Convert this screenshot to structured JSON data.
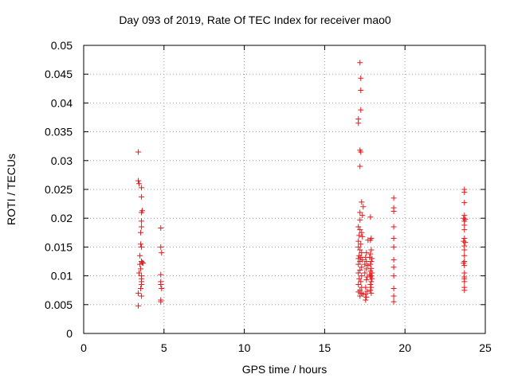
{
  "chart_data": {
    "type": "scatter",
    "title": "Day 093 of 2019, Rate Of TEC Index for receiver mao0",
    "xlabel": "GPS time / hours",
    "ylabel": "ROTI / TECUs",
    "xlim": [
      0,
      25
    ],
    "ylim": [
      0,
      0.05
    ],
    "xticks": [
      0,
      5,
      10,
      15,
      20,
      25
    ],
    "xtick_labels": [
      "0",
      "5",
      "10",
      "15",
      "20",
      "25"
    ],
    "yticks": [
      0,
      0.005,
      0.01,
      0.015,
      0.02,
      0.025,
      0.03,
      0.035,
      0.04,
      0.045,
      0.05
    ],
    "ytick_labels": [
      "0",
      "0.005",
      "0.01",
      "0.015",
      "0.02",
      "0.025",
      "0.03",
      "0.035",
      "0.04",
      "0.045",
      "0.05"
    ],
    "grid": true,
    "marker": "+",
    "color": "#e41a1c",
    "series": [
      {
        "name": "ROTI",
        "points": [
          [
            3.4,
            0.0315
          ],
          [
            3.4,
            0.0265
          ],
          [
            3.45,
            0.026
          ],
          [
            3.6,
            0.0253
          ],
          [
            3.6,
            0.0237
          ],
          [
            3.65,
            0.0213
          ],
          [
            3.6,
            0.021
          ],
          [
            3.6,
            0.0195
          ],
          [
            3.6,
            0.0185
          ],
          [
            3.55,
            0.0175
          ],
          [
            3.55,
            0.0155
          ],
          [
            3.6,
            0.015
          ],
          [
            3.5,
            0.0135
          ],
          [
            3.6,
            0.0125
          ],
          [
            3.65,
            0.0123
          ],
          [
            3.7,
            0.0122
          ],
          [
            3.5,
            0.012
          ],
          [
            3.55,
            0.0112
          ],
          [
            3.45,
            0.0105
          ],
          [
            3.6,
            0.01
          ],
          [
            3.6,
            0.0095
          ],
          [
            3.6,
            0.009
          ],
          [
            3.6,
            0.0085
          ],
          [
            3.55,
            0.0078
          ],
          [
            3.4,
            0.007
          ],
          [
            3.6,
            0.0065
          ],
          [
            3.4,
            0.0048
          ],
          [
            4.8,
            0.0183
          ],
          [
            4.8,
            0.015
          ],
          [
            4.85,
            0.014
          ],
          [
            4.8,
            0.0102
          ],
          [
            4.8,
            0.009
          ],
          [
            4.8,
            0.0085
          ],
          [
            4.85,
            0.0078
          ],
          [
            4.8,
            0.0058
          ],
          [
            4.8,
            0.0055
          ],
          [
            17.2,
            0.047
          ],
          [
            17.25,
            0.0443
          ],
          [
            17.25,
            0.0422
          ],
          [
            17.25,
            0.0388
          ],
          [
            17.1,
            0.0372
          ],
          [
            17.1,
            0.0365
          ],
          [
            17.2,
            0.0318
          ],
          [
            17.25,
            0.0315
          ],
          [
            17.2,
            0.029
          ],
          [
            17.3,
            0.0228
          ],
          [
            17.4,
            0.022
          ],
          [
            17.2,
            0.021
          ],
          [
            17.35,
            0.0205
          ],
          [
            17.2,
            0.0197
          ],
          [
            17.1,
            0.0185
          ],
          [
            17.2,
            0.018
          ],
          [
            17.3,
            0.0175
          ],
          [
            17.15,
            0.017
          ],
          [
            17.35,
            0.0168
          ],
          [
            17.1,
            0.016
          ],
          [
            17.25,
            0.0155
          ],
          [
            17.1,
            0.015
          ],
          [
            17.2,
            0.0145
          ],
          [
            17.3,
            0.014
          ],
          [
            17.15,
            0.0135
          ],
          [
            17.25,
            0.0132
          ],
          [
            17.1,
            0.013
          ],
          [
            17.35,
            0.0128
          ],
          [
            17.2,
            0.0125
          ],
          [
            17.1,
            0.012
          ],
          [
            17.3,
            0.0115
          ],
          [
            17.2,
            0.011
          ],
          [
            17.1,
            0.0105
          ],
          [
            17.3,
            0.01
          ],
          [
            17.15,
            0.0095
          ],
          [
            17.25,
            0.009
          ],
          [
            17.1,
            0.0085
          ],
          [
            17.3,
            0.008
          ],
          [
            17.2,
            0.0075
          ],
          [
            17.1,
            0.0072
          ],
          [
            17.3,
            0.007
          ],
          [
            17.4,
            0.0068
          ],
          [
            17.2,
            0.0065
          ],
          [
            17.7,
            0.0162
          ],
          [
            17.6,
            0.014
          ],
          [
            17.55,
            0.0132
          ],
          [
            17.6,
            0.0125
          ],
          [
            17.5,
            0.012
          ],
          [
            17.7,
            0.0118
          ],
          [
            17.6,
            0.0112
          ],
          [
            17.5,
            0.0105
          ],
          [
            17.65,
            0.0098
          ],
          [
            17.6,
            0.0093
          ],
          [
            17.55,
            0.008
          ],
          [
            17.65,
            0.0073
          ],
          [
            17.55,
            0.0068
          ],
          [
            17.6,
            0.0063
          ],
          [
            17.55,
            0.0058
          ],
          [
            17.85,
            0.0202
          ],
          [
            17.9,
            0.0165
          ],
          [
            17.85,
            0.0162
          ],
          [
            17.9,
            0.0145
          ],
          [
            17.85,
            0.0138
          ],
          [
            17.8,
            0.0132
          ],
          [
            17.95,
            0.013
          ],
          [
            17.9,
            0.0125
          ],
          [
            17.85,
            0.012
          ],
          [
            17.9,
            0.0113
          ],
          [
            17.85,
            0.0108
          ],
          [
            17.95,
            0.0105
          ],
          [
            17.8,
            0.0102
          ],
          [
            17.9,
            0.01
          ],
          [
            17.85,
            0.0098
          ],
          [
            17.95,
            0.0095
          ],
          [
            17.9,
            0.009
          ],
          [
            17.85,
            0.0085
          ],
          [
            17.9,
            0.008
          ],
          [
            17.85,
            0.0075
          ],
          [
            17.9,
            0.007
          ],
          [
            19.3,
            0.0235
          ],
          [
            19.3,
            0.0218
          ],
          [
            19.3,
            0.0212
          ],
          [
            19.3,
            0.0185
          ],
          [
            19.3,
            0.0165
          ],
          [
            19.3,
            0.015
          ],
          [
            19.3,
            0.0128
          ],
          [
            19.3,
            0.0115
          ],
          [
            19.3,
            0.01
          ],
          [
            19.3,
            0.0078
          ],
          [
            19.3,
            0.0065
          ],
          [
            19.3,
            0.0055
          ],
          [
            23.7,
            0.025
          ],
          [
            23.7,
            0.0245
          ],
          [
            23.7,
            0.0227
          ],
          [
            23.7,
            0.0205
          ],
          [
            23.65,
            0.02
          ],
          [
            23.75,
            0.0198
          ],
          [
            23.7,
            0.0195
          ],
          [
            23.7,
            0.0188
          ],
          [
            23.7,
            0.018
          ],
          [
            23.7,
            0.0165
          ],
          [
            23.65,
            0.016
          ],
          [
            23.75,
            0.0158
          ],
          [
            23.7,
            0.0152
          ],
          [
            23.7,
            0.0145
          ],
          [
            23.7,
            0.0135
          ],
          [
            23.7,
            0.0125
          ],
          [
            23.65,
            0.0122
          ],
          [
            23.7,
            0.0118
          ],
          [
            23.7,
            0.0105
          ],
          [
            23.7,
            0.0098
          ],
          [
            23.7,
            0.0095
          ],
          [
            23.7,
            0.009
          ],
          [
            23.7,
            0.008
          ],
          [
            23.7,
            0.0075
          ]
        ]
      }
    ]
  }
}
